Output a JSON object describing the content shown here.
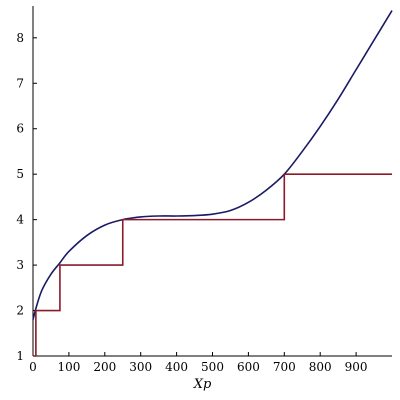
{
  "chart_data": {
    "type": "line",
    "title": "",
    "xlabel": "Xp",
    "ylabel": "",
    "xlim": [
      0,
      1000
    ],
    "ylim": [
      1,
      8.7
    ],
    "x_ticks": [
      0,
      100,
      200,
      300,
      400,
      500,
      600,
      700,
      800,
      900
    ],
    "y_ticks": [
      1,
      2,
      3,
      4,
      5,
      6,
      7,
      8
    ],
    "grid": false,
    "legend": "none",
    "series": [
      {
        "color": "#1a1a66",
        "style": "smooth",
        "x": [
          0,
          10,
          25,
          50,
          75,
          100,
          150,
          200,
          250,
          300,
          350,
          400,
          450,
          500,
          550,
          600,
          650,
          700,
          750,
          800,
          850,
          900,
          950,
          1000
        ],
        "y": [
          1.8,
          2.1,
          2.45,
          2.8,
          3.05,
          3.3,
          3.65,
          3.88,
          4.0,
          4.06,
          4.08,
          4.08,
          4.09,
          4.12,
          4.2,
          4.38,
          4.65,
          5.0,
          5.5,
          6.05,
          6.65,
          7.3,
          7.95,
          8.6
        ]
      },
      {
        "color": "#8b1a2b",
        "style": "step",
        "x": [
          0,
          8,
          8,
          75,
          75,
          250,
          250,
          700,
          700,
          1000
        ],
        "y": [
          1,
          1,
          2,
          2,
          3,
          3,
          4,
          4,
          5,
          5
        ]
      }
    ]
  }
}
